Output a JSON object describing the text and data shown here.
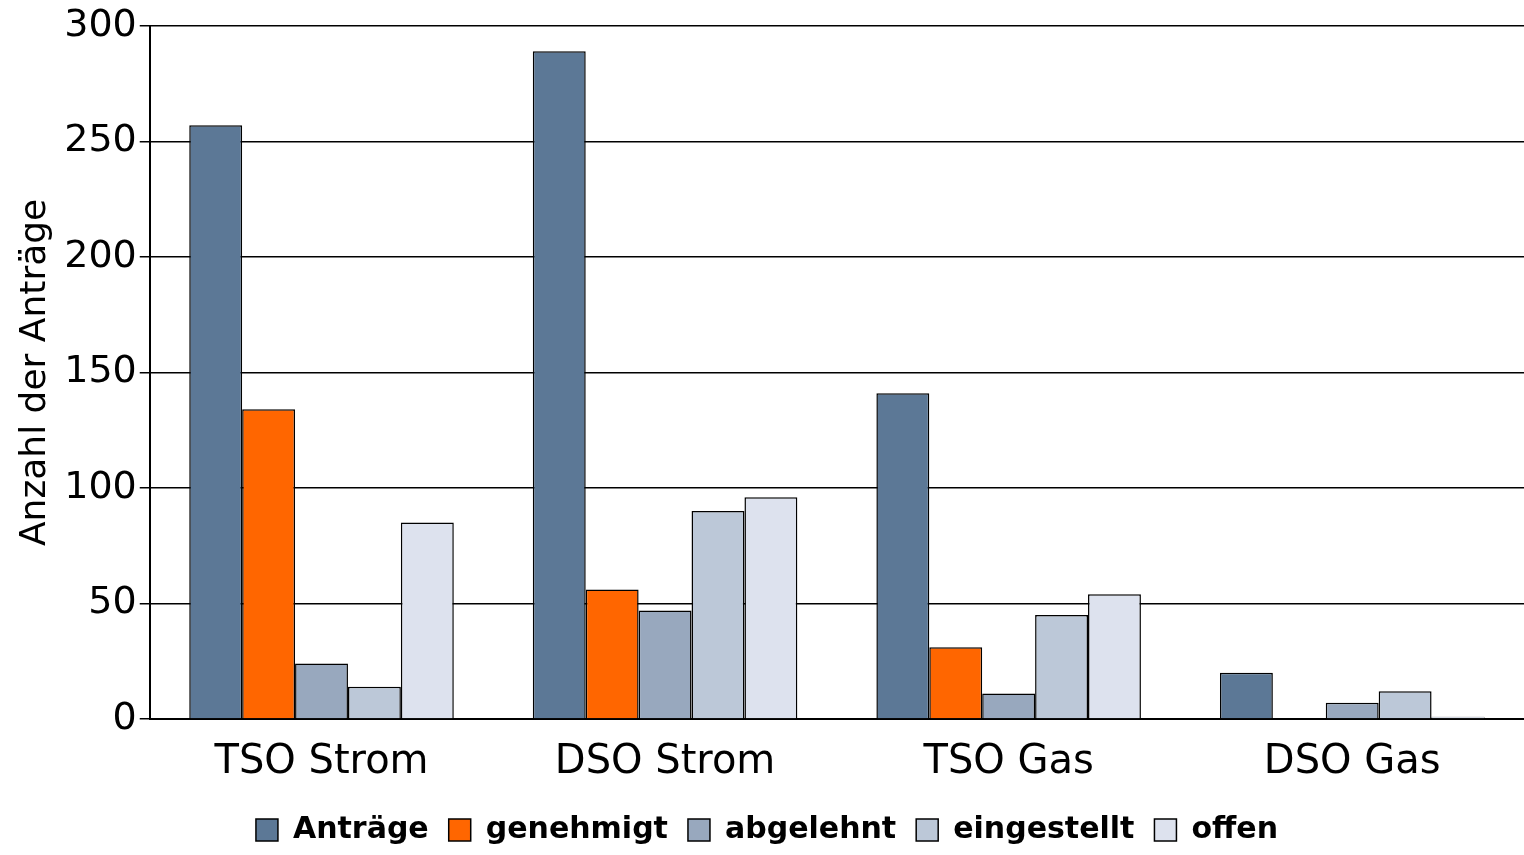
{
  "chart_data": {
    "type": "bar",
    "ylabel": "Anzahl der Anträge",
    "categories": [
      "TSO Strom",
      "DSO Strom",
      "TSO Gas",
      "DSO Gas"
    ],
    "series": [
      {
        "name": "Anträge",
        "color": "#5c7896",
        "values": [
          257,
          289,
          141,
          20
        ]
      },
      {
        "name": "genehmigt",
        "color": "#ff6600",
        "values": [
          134,
          56,
          31,
          0
        ]
      },
      {
        "name": "abgelehnt",
        "color": "#98a8be",
        "values": [
          24,
          47,
          11,
          7
        ]
      },
      {
        "name": "eingestellt",
        "color": "#bcc8d8",
        "values": [
          14,
          90,
          45,
          12
        ]
      },
      {
        "name": "offen",
        "color": "#dde2ee",
        "values": [
          85,
          96,
          54,
          1
        ]
      }
    ],
    "ylim": [
      0,
      300
    ],
    "yticks": [
      0,
      50,
      100,
      150,
      200,
      250,
      300
    ],
    "grid": "y",
    "legend": "bottom"
  }
}
